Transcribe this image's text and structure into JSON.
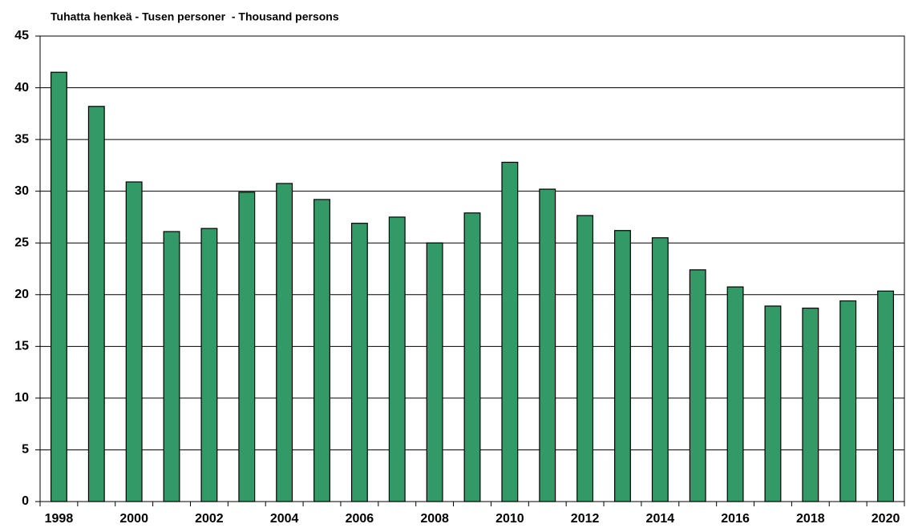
{
  "chart_data": {
    "type": "bar",
    "title": "Tuhatta henkeä - Tusen personer  - Thousand persons",
    "categories": [
      "1998",
      null,
      "2000",
      null,
      "2002",
      null,
      "2004",
      null,
      "2006",
      null,
      "2008",
      null,
      "2010",
      null,
      "2012",
      null,
      "2014",
      null,
      "2016",
      null,
      "2018",
      null,
      "2020"
    ],
    "values": [
      41.5,
      38.2,
      30.9,
      26.1,
      26.4,
      29.9,
      30.75,
      29.2,
      26.9,
      27.5,
      25.0,
      27.9,
      32.8,
      30.2,
      27.65,
      26.2,
      25.5,
      22.4,
      20.75,
      18.9,
      18.7,
      19.4,
      20.35
    ],
    "color": "#339966",
    "ylim": [
      0,
      45
    ],
    "yticks": [
      0,
      5,
      10,
      15,
      20,
      25,
      30,
      35,
      40,
      45
    ],
    "grid": true
  }
}
